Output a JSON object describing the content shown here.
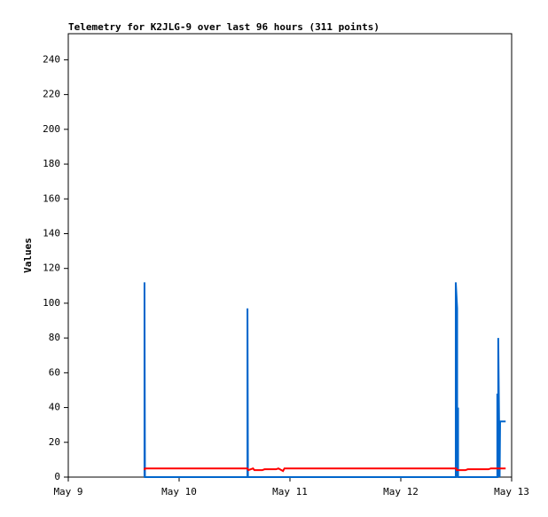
{
  "chart_data": {
    "type": "line",
    "title": "Telemetry for K2JLG-9 over last 96 hours (311 points)",
    "y_label": "Values",
    "xlim": [
      0,
      96
    ],
    "xticks": [
      {
        "value": 0,
        "label": "May 9"
      },
      {
        "value": 24,
        "label": "May 10"
      },
      {
        "value": 48,
        "label": "May 11"
      },
      {
        "value": 72,
        "label": "May 12"
      },
      {
        "value": 96,
        "label": "May 13"
      }
    ],
    "ylim": [
      0,
      255
    ],
    "yticks": [
      0,
      20,
      40,
      60,
      80,
      100,
      120,
      140,
      160,
      180,
      200,
      220,
      240
    ],
    "series": [
      {
        "color": "#0066cc",
        "x": [
          16.5,
          16.5,
          16.6,
          38.8,
          38.8,
          38.9,
          83.9,
          83.9,
          84.2,
          84.2,
          84.4,
          84.4,
          84.5,
          92.9,
          92.9,
          93.1,
          93.1,
          93.4,
          93.5,
          94.7
        ],
        "values": [
          0,
          112,
          0,
          0,
          97,
          0,
          0,
          112,
          97,
          0,
          40,
          0,
          0,
          0,
          48,
          0,
          80,
          0,
          32,
          32
        ]
      },
      {
        "color": "#ff0000",
        "x": [
          16.5,
          16.6,
          38.8,
          39.0,
          40.0,
          40.3,
          42.0,
          42.5,
          45.0,
          45.5,
          46.5,
          46.8,
          84.0,
          84.1,
          86.0,
          86.5,
          91.0,
          91.5,
          94.7
        ],
        "values": [
          4,
          5,
          5,
          4,
          5,
          4,
          4,
          4.5,
          4.5,
          5,
          3.5,
          5,
          5,
          4,
          4,
          4.5,
          4.5,
          5,
          5
        ]
      }
    ]
  }
}
